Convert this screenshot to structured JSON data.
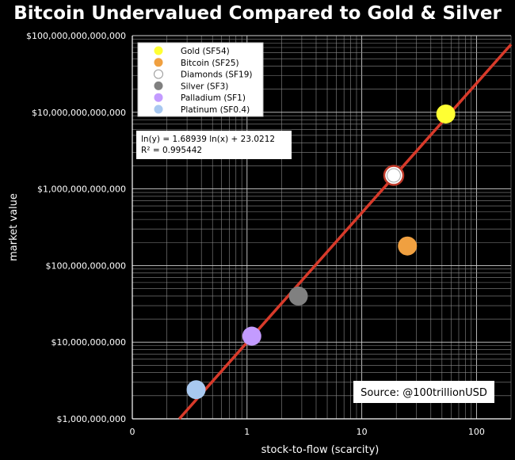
{
  "chart_data": {
    "type": "scatter",
    "title": "Bitcoin Undervalued Compared to Gold & Silver",
    "xlabel": "stock-to-flow (scarcity)",
    "ylabel": "market value",
    "x_scale": "log",
    "y_scale": "log",
    "xlim": [
      0.1,
      200
    ],
    "ylim": [
      1000000000,
      100000000000000
    ],
    "x_ticks": [
      {
        "value": 0.1,
        "label": "0"
      },
      {
        "value": 1,
        "label": "1"
      },
      {
        "value": 10,
        "label": "10"
      },
      {
        "value": 100,
        "label": "100"
      }
    ],
    "y_ticks": [
      {
        "value": 1000000000,
        "label": "$1,000,000,000"
      },
      {
        "value": 10000000000,
        "label": "$10,000,000,000"
      },
      {
        "value": 100000000000,
        "label": "$100,000,000,000"
      },
      {
        "value": 1000000000000,
        "label": "$1,000,000,000,000"
      },
      {
        "value": 10000000000000,
        "label": "$10,000,000,000,000"
      },
      {
        "value": 100000000000000,
        "label": "$100,000,000,000,000"
      }
    ],
    "grid": true,
    "legend_position": "top-left",
    "series": [
      {
        "name": "Gold (SF54)",
        "color": "#ffff33",
        "x": 54,
        "y": 9500000000000
      },
      {
        "name": "Bitcoin (SF25)",
        "color": "#f0a040",
        "x": 25,
        "y": 180000000000
      },
      {
        "name": "Diamonds (SF19)",
        "color": "#ffffff",
        "hollow": true,
        "x": 19,
        "y": 1500000000000
      },
      {
        "name": "Silver (SF3)",
        "color": "#808080",
        "x": 2.8,
        "y": 40000000000
      },
      {
        "name": "Palladium (SF1)",
        "color": "#c39bff",
        "x": 1.1,
        "y": 12000000000
      },
      {
        "name": "Platinum (SF0.4)",
        "color": "#a8c8f0",
        "x": 0.36,
        "y": 2400000000
      }
    ],
    "regression": {
      "equation": "ln(y) = 1.68939 ln(x) + 23.0212",
      "r_squared": "R² = 0.995442",
      "slope": 1.68939,
      "intercept": 23.0212,
      "color": "#d83a2a"
    },
    "annotations": [
      {
        "text": "Source: @100trillionUSD"
      }
    ]
  }
}
